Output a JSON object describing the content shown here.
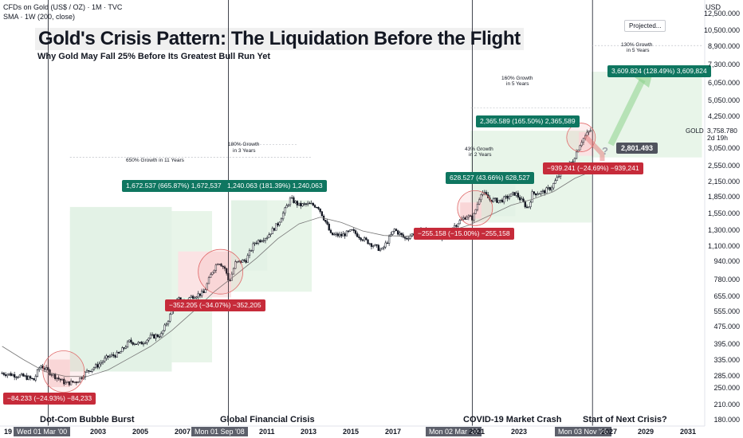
{
  "header": {
    "symbol_line": "CFDs on Gold (US$ / OZ) · 1M · TVC",
    "sma_line": "SMA · 1W (200, close)",
    "currency": "USD"
  },
  "title": "Gold's Crisis Pattern: The Liquidation Before the Flight",
  "subtitle": "Why Gold May Fall 25% Before Its Greatest Bull Run Yet",
  "events": [
    {
      "label": "Dot-Com Bubble Burst"
    },
    {
      "label": "Global Financial Crisis"
    },
    {
      "label": "COVID-19 Market Crash"
    },
    {
      "label": "Start of Next Crisis?"
    }
  ],
  "badges": {
    "g1": "1,672.537 (665.87%) 1,672,537",
    "g2": "1,240.063 (181.39%) 1,240,063",
    "g3": "628.527 (43.66%) 628,527",
    "g4": "2,365.589 (165.50%) 2,365,589",
    "g5": "3,609.824 (128.49%) 3,609,824",
    "r1": "−84.233 (−24.93%) −84,233",
    "r2": "−352.205 (−34.07%) −352,205",
    "r3": "−255.158 (−15.00%) −255,158",
    "r4": "−939.241 (−24.69%) −939,241"
  },
  "notes": {
    "n1": "650% Growth in 11 Years",
    "n2a": "180% Growth",
    "n2b": "in 3 Years",
    "n3a": "43% Growth",
    "n3b": "in 2 Years",
    "n4a": "160% Growth",
    "n4b": "in 5 Years",
    "n5a": "130% Growth",
    "n5b": "in 5 Years",
    "projected": "Projected..."
  },
  "price": {
    "symbol": "GOLD",
    "value": "3,758.780",
    "countdown": "2d 19h",
    "projected_low": "2,801.493",
    "question": "?"
  },
  "date_markers": [
    "Wed 01 Mar '00",
    "Mon 01 Sep '08",
    "Mon 02 Mar '20",
    "Mon 03 Nov '25"
  ],
  "colors": {
    "up": "#131722",
    "down": "#131722",
    "green_zone": "#e8f5e9",
    "red_zone": "#fbe3e4",
    "badge_green": "#0f7660",
    "badge_red": "#c62b3a",
    "sma": "#777777"
  },
  "chart_data": {
    "type": "line",
    "title": "Gold's Crisis Pattern: The Liquidation Before the Flight",
    "xlabel": "",
    "ylabel": "",
    "y_scale": "log",
    "ylim": [
      180,
      14000
    ],
    "xlim": [
      1997.9,
      2032
    ],
    "x_ticks": [
      "19",
      "2003",
      "2005",
      "2007",
      "2011",
      "2013",
      "2015",
      "2017",
      "2021",
      "2023",
      "2027",
      "2029",
      "2031"
    ],
    "y_ticks": [
      "12,500.000",
      "10,500.000",
      "8,900.000",
      "7,300.000",
      "6,050.000",
      "5,050.000",
      "4,250.000",
      "3,050.000",
      "2,550.000",
      "2,150.000",
      "1,850.000",
      "1,550.000",
      "1,300.000",
      "1,100.000",
      "940.000",
      "780.000",
      "655.000",
      "555.000",
      "475.000",
      "395.000",
      "335.000",
      "285.000",
      "250.000",
      "210.000",
      "180.000"
    ],
    "series": [
      {
        "points": [
          [
            1998,
            295
          ],
          [
            1998.5,
            290
          ],
          [
            1999,
            285
          ],
          [
            1999.5,
            275
          ],
          [
            1999.8,
            320
          ],
          [
            2000,
            310
          ],
          [
            2000.5,
            285
          ],
          [
            2001,
            265
          ],
          [
            2001.5,
            270
          ],
          [
            2002,
            300
          ],
          [
            2002.5,
            320
          ],
          [
            2003,
            350
          ],
          [
            2003.5,
            360
          ],
          [
            2004,
            410
          ],
          [
            2004.5,
            400
          ],
          [
            2005,
            430
          ],
          [
            2005.5,
            440
          ],
          [
            2006,
            560
          ],
          [
            2006.3,
            640
          ],
          [
            2006.5,
            620
          ],
          [
            2007,
            660
          ],
          [
            2007.5,
            680
          ],
          [
            2007.9,
            850
          ],
          [
            2008.2,
            950
          ],
          [
            2008.5,
            880
          ],
          [
            2008.7,
            760
          ],
          [
            2009,
            930
          ],
          [
            2009.5,
            960
          ],
          [
            2009.9,
            1150
          ],
          [
            2010.5,
            1230
          ],
          [
            2011,
            1400
          ],
          [
            2011.6,
            1820
          ],
          [
            2012,
            1700
          ],
          [
            2012.5,
            1720
          ],
          [
            2012.9,
            1680
          ],
          [
            2013.3,
            1400
          ],
          [
            2013.5,
            1250
          ],
          [
            2014,
            1240
          ],
          [
            2014.5,
            1300
          ],
          [
            2015,
            1200
          ],
          [
            2015.9,
            1060
          ],
          [
            2016.5,
            1320
          ],
          [
            2017,
            1200
          ],
          [
            2017.5,
            1280
          ],
          [
            2018,
            1320
          ],
          [
            2018.7,
            1200
          ],
          [
            2019,
            1290
          ],
          [
            2019.5,
            1420
          ],
          [
            2019.9,
            1520
          ],
          [
            2020.2,
            1480
          ],
          [
            2020.6,
            1970
          ],
          [
            2021,
            1800
          ],
          [
            2021.5,
            1780
          ],
          [
            2022.2,
            1930
          ],
          [
            2022.8,
            1640
          ],
          [
            2023,
            1920
          ],
          [
            2023.5,
            1950
          ],
          [
            2023.9,
            2050
          ],
          [
            2024.3,
            2350
          ],
          [
            2024.9,
            2700
          ],
          [
            2025.3,
            3300
          ],
          [
            2025.6,
            3600
          ],
          [
            2025.8,
            3758
          ]
        ]
      },
      {
        "name": "SMA · 1W (200, close)",
        "points": [
          [
            1998,
            390
          ],
          [
            1999,
            340
          ],
          [
            2000,
            300
          ],
          [
            2001,
            285
          ],
          [
            2002,
            285
          ],
          [
            2003,
            305
          ],
          [
            2004,
            345
          ],
          [
            2005,
            390
          ],
          [
            2006,
            460
          ],
          [
            2007,
            560
          ],
          [
            2008,
            690
          ],
          [
            2009,
            820
          ],
          [
            2010,
            980
          ],
          [
            2011,
            1200
          ],
          [
            2012,
            1400
          ],
          [
            2013,
            1500
          ],
          [
            2014,
            1420
          ],
          [
            2015,
            1300
          ],
          [
            2016,
            1240
          ],
          [
            2017,
            1230
          ],
          [
            2018,
            1260
          ],
          [
            2019,
            1290
          ],
          [
            2020,
            1380
          ],
          [
            2021,
            1530
          ],
          [
            2022,
            1700
          ],
          [
            2023,
            1810
          ],
          [
            2024,
            1960
          ],
          [
            2025,
            2250
          ],
          [
            2025.8,
            2420
          ]
        ]
      }
    ],
    "annotations": [
      "650% Growth in 11 Years",
      "180% Growth in 3 Years",
      "43% Growth in 2 Years",
      "160% Growth in 5 Years",
      "130% Growth in 5 Years"
    ]
  }
}
